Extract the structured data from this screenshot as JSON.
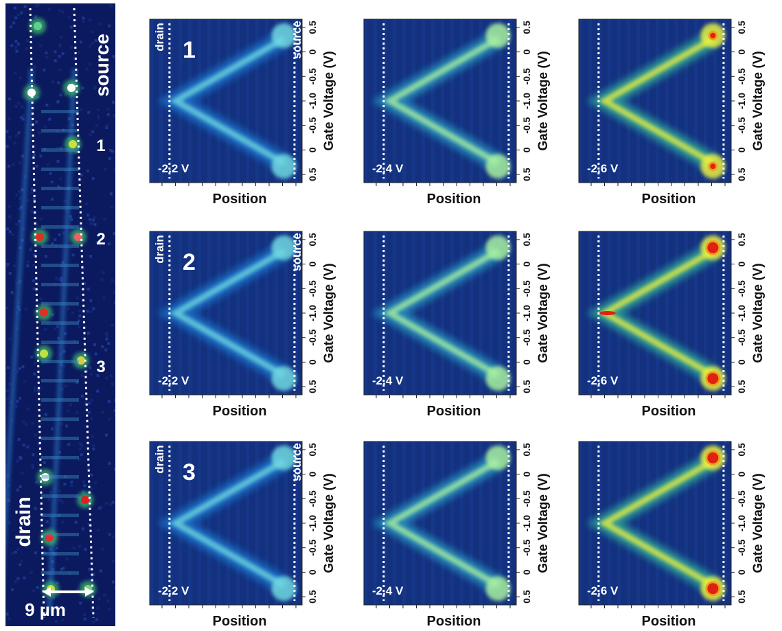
{
  "left_panel": {
    "labels": [
      "source",
      "1",
      "2",
      "3",
      "drain"
    ],
    "scale": "9 µm"
  },
  "panels": [
    {
      "row_label": "1",
      "drain_label": "drain",
      "source_label": "source",
      "voltage": "-2.2 V",
      "x_label": "Position",
      "y_label": "Gate Voltage (V)",
      "y_ticks": [
        "0.5",
        "0",
        "-0.5",
        "-1.0",
        "-0.5",
        "0",
        "0.5"
      ]
    },
    {
      "voltage": "-2.4 V",
      "x_label": "Position",
      "y_label": "Gate Voltage (V)",
      "y_ticks": [
        "0.5",
        "0",
        "-0.5",
        "-1.0",
        "-0.5",
        "0",
        "0.5"
      ]
    },
    {
      "voltage": "-2.6 V",
      "x_label": "Position",
      "y_label": "Gate Voltage (V)",
      "y_ticks": [
        "0.5",
        "0",
        "-0.5",
        "-1.0",
        "-0.5",
        "0",
        "0.5"
      ]
    },
    {
      "row_label": "2",
      "drain_label": "drain",
      "source_label": "source",
      "voltage": "-2.2 V",
      "x_label": "Position",
      "y_label": "Gate Voltage (V)",
      "y_ticks": [
        "0.5",
        "0",
        "-0.5",
        "-1.0",
        "-0.5",
        "0",
        "0.5"
      ]
    },
    {
      "voltage": "-2.4 V",
      "x_label": "Position",
      "y_label": "Gate Voltage (V)",
      "y_ticks": [
        "0.5",
        "0",
        "-0.5",
        "-1.0",
        "-0.5",
        "0",
        "0.5"
      ]
    },
    {
      "voltage": "-2.6 V",
      "x_label": "Position",
      "y_label": "Gate Voltage (V)",
      "y_ticks": [
        "0.5",
        "0",
        "-0.5",
        "-1.0",
        "-0.5",
        "0",
        "0.5"
      ]
    },
    {
      "row_label": "3",
      "drain_label": "drain",
      "source_label": "source",
      "voltage": "-2.2 V",
      "x_label": "Position",
      "y_label": "Gate Voltage (V)",
      "y_ticks": [
        "0.5",
        "0",
        "-0.5",
        "-1.0",
        "-0.5",
        "0",
        "0.5"
      ]
    },
    {
      "voltage": "-2.4 V",
      "x_label": "Position",
      "y_label": "Gate Voltage (V)",
      "y_ticks": [
        "0.5",
        "0",
        "-0.5",
        "-1.0",
        "-0.5",
        "0",
        "0.5"
      ]
    },
    {
      "voltage": "-2.6 V",
      "x_label": "Position",
      "y_label": "Gate Voltage (V)",
      "y_ticks": [
        "0.5",
        "0",
        "-0.5",
        "-1.0",
        "-0.5",
        "0",
        "0.5"
      ]
    }
  ]
}
